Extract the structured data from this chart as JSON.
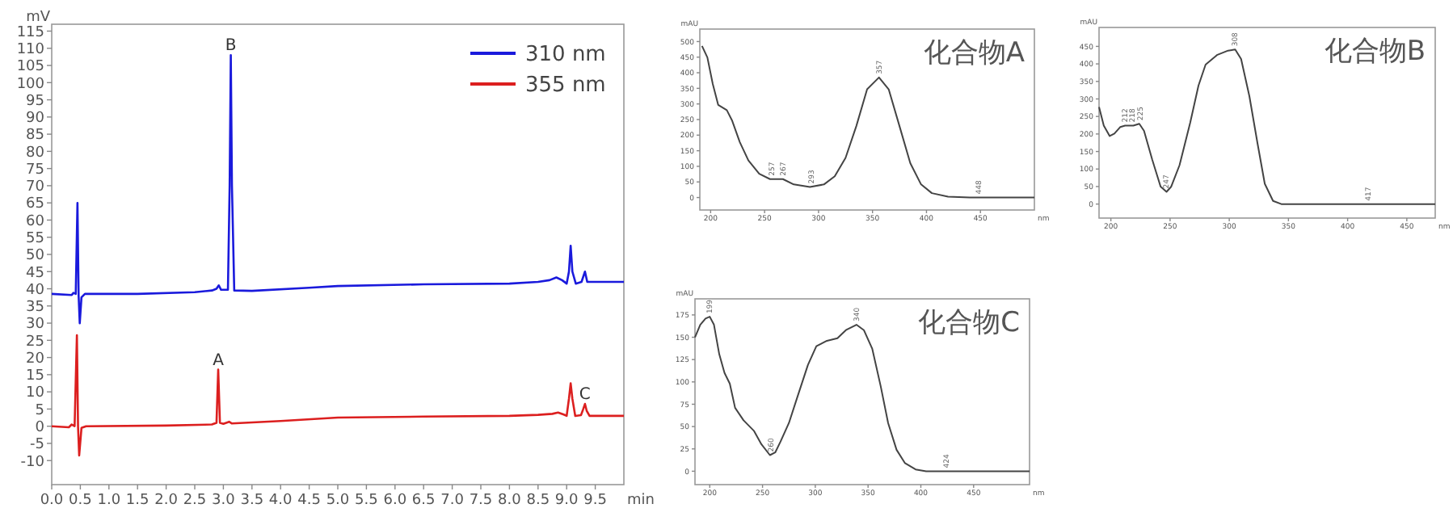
{
  "chart_data": [
    {
      "type": "line",
      "xlabel": "min",
      "ylabel": "mV",
      "xlim": [
        0,
        10
      ],
      "ylim": [
        -17,
        117
      ],
      "xticks": [
        {
          "value": 0,
          "label": "0.0"
        },
        0.5,
        {
          "value": 1,
          "label": "1.0"
        },
        1.5,
        {
          "value": 2,
          "label": "2.0"
        },
        2.5,
        {
          "value": 3,
          "label": "3.0"
        },
        3.5,
        {
          "value": 4,
          "label": "4.0"
        },
        4.5,
        {
          "value": 5,
          "label": "5.0"
        },
        5.5,
        {
          "value": 6,
          "label": "6.0"
        },
        6.5,
        {
          "value": 7,
          "label": "7.0"
        },
        7.5,
        {
          "value": 8,
          "label": "8.0"
        },
        8.5,
        {
          "value": 9,
          "label": "9.0"
        },
        9.5
      ],
      "yticks": [
        -10,
        -5,
        0,
        5,
        10,
        15,
        20,
        25,
        30,
        35,
        40,
        45,
        50,
        55,
        60,
        65,
        70,
        75,
        80,
        85,
        90,
        95,
        100,
        105,
        110,
        115
      ],
      "legend": "top right",
      "series": [
        {
          "name": "310 nm",
          "color": "#1a1adc",
          "x": [
            0,
            0.35,
            0.38,
            0.42,
            0.45,
            0.47,
            0.49,
            0.52,
            0.58,
            1.5,
            2.5,
            2.8,
            2.88,
            2.92,
            2.96,
            3.08,
            3.11,
            3.13,
            3.15,
            3.19,
            3.5,
            4.5,
            5.0,
            6.5,
            8.0,
            8.5,
            8.7,
            8.82,
            8.92,
            9.0,
            9.04,
            9.07,
            9.1,
            9.16,
            9.26,
            9.32,
            9.36,
            10
          ],
          "values": [
            38.5,
            38.2,
            38.8,
            38.5,
            65,
            38,
            30,
            37.5,
            38.5,
            38.5,
            39,
            39.5,
            40,
            41,
            39.7,
            39.7,
            70,
            108,
            70,
            39.5,
            39.4,
            40.3,
            40.8,
            41.3,
            41.5,
            42,
            42.5,
            43.3,
            42.5,
            41.5,
            45,
            52.5,
            45,
            41.5,
            42,
            45,
            42,
            42
          ]
        },
        {
          "name": "355 nm",
          "color": "#dc1f1f",
          "x": [
            0,
            0.3,
            0.35,
            0.4,
            0.44,
            0.46,
            0.48,
            0.52,
            0.6,
            2.0,
            2.8,
            2.88,
            2.91,
            2.94,
            3.0,
            3.1,
            3.15,
            4.0,
            5.0,
            6.5,
            8.0,
            8.5,
            8.75,
            8.85,
            8.95,
            9.0,
            9.04,
            9.07,
            9.1,
            9.15,
            9.25,
            9.29,
            9.32,
            9.35,
            9.4,
            10
          ],
          "values": [
            0,
            -0.3,
            0.5,
            0,
            26.5,
            0,
            -8.5,
            -0.5,
            0,
            0.2,
            0.5,
            1,
            16.5,
            1,
            0.7,
            1.3,
            0.8,
            1.5,
            2.5,
            2.8,
            3,
            3.3,
            3.6,
            4,
            3.4,
            3,
            8,
            12.5,
            8,
            3,
            3.2,
            5,
            6.5,
            4.5,
            3,
            3
          ]
        }
      ],
      "annotations": [
        {
          "text": "B",
          "x": 3.13,
          "y": 108
        },
        {
          "text": "A",
          "x": 2.91,
          "y": 16.5
        },
        {
          "text": "C",
          "x": 9.32,
          "y": 6.5
        }
      ]
    },
    {
      "type": "line",
      "title": "化合物A",
      "xlabel": "nm",
      "ylabel": "mAU",
      "xlim": [
        190,
        500
      ],
      "ylim": [
        -40,
        540
      ],
      "xticks": [
        200,
        250,
        300,
        350,
        400,
        450
      ],
      "yticks": [
        0,
        50,
        100,
        150,
        200,
        250,
        300,
        350,
        400,
        450,
        500
      ],
      "series": [
        {
          "color": "#444444",
          "x": [
            192,
            197,
            202,
            207,
            215,
            220,
            227,
            235,
            245,
            255,
            267,
            277,
            292,
            305,
            315,
            325,
            335,
            345,
            356,
            365,
            375,
            385,
            395,
            405,
            420,
            440,
            500
          ],
          "values": [
            486,
            449,
            364,
            297,
            280,
            246,
            178,
            119,
            76,
            59,
            59,
            42,
            34,
            42,
            68,
            127,
            229,
            347,
            385,
            347,
            229,
            110,
            42,
            14,
            3,
            0,
            0
          ]
        }
      ],
      "annotations": [
        {
          "text": "257",
          "x": 257,
          "y": 59
        },
        {
          "text": "267",
          "x": 267,
          "y": 59
        },
        {
          "text": "293",
          "x": 293,
          "y": 34
        },
        {
          "text": "357",
          "x": 356,
          "y": 385
        },
        {
          "text": "448",
          "x": 448,
          "y": 0
        }
      ]
    },
    {
      "type": "line",
      "title": "化合物B",
      "xlabel": "nm",
      "ylabel": "mAU",
      "xlim": [
        190,
        474
      ],
      "ylim": [
        -40,
        504
      ],
      "xticks": [
        200,
        250,
        300,
        350,
        400,
        450
      ],
      "yticks": [
        0,
        50,
        100,
        150,
        200,
        250,
        300,
        350,
        400,
        450
      ],
      "series": [
        {
          "color": "#444444",
          "x": [
            190,
            194,
            199,
            203,
            208,
            212,
            219,
            224,
            228,
            235,
            242,
            247,
            251,
            258,
            267,
            274,
            280,
            290,
            299,
            305,
            310,
            317,
            324,
            330,
            337,
            344,
            474
          ],
          "values": [
            277,
            224,
            194,
            201,
            220,
            224,
            224,
            229,
            209,
            126,
            50,
            35,
            50,
            111,
            232,
            338,
            398,
            426,
            438,
            441,
            414,
            308,
            171,
            58,
            9,
            0,
            0
          ]
        }
      ],
      "annotations": [
        {
          "text": "212",
          "x": 212,
          "y": 224
        },
        {
          "text": "218",
          "x": 218,
          "y": 224
        },
        {
          "text": "225",
          "x": 225,
          "y": 229
        },
        {
          "text": "247",
          "x": 247,
          "y": 35
        },
        {
          "text": "308",
          "x": 305,
          "y": 441
        },
        {
          "text": "417",
          "x": 417,
          "y": 0
        }
      ]
    },
    {
      "type": "line",
      "title": "化合物C",
      "xlabel": "nm",
      "ylabel": "mAU",
      "xlim": [
        186,
        503
      ],
      "ylim": [
        -15,
        193
      ],
      "xticks": [
        200,
        250,
        300,
        350,
        400,
        450
      ],
      "yticks": [
        0,
        25,
        50,
        75,
        100,
        125,
        150,
        175
      ],
      "series": [
        {
          "color": "#444444",
          "x": [
            186,
            191,
            196,
            200,
            204,
            209,
            214,
            219,
            224,
            232,
            242,
            249,
            257,
            262,
            267,
            275,
            283,
            293,
            301,
            311,
            321,
            329,
            339,
            346,
            354,
            362,
            369,
            377,
            385,
            395,
            405,
            503
          ],
          "values": [
            150,
            164,
            171,
            173,
            164,
            131,
            110,
            98,
            71,
            57,
            45,
            30,
            18,
            21,
            33,
            54,
            83,
            119,
            140,
            146,
            149,
            158,
            164,
            158,
            137,
            95,
            54,
            24,
            9,
            2,
            0,
            0
          ]
        }
      ],
      "annotations": [
        {
          "text": "199",
          "x": 200,
          "y": 173
        },
        {
          "text": "260",
          "x": 258,
          "y": 18
        },
        {
          "text": "340",
          "x": 339,
          "y": 164
        },
        {
          "text": "424",
          "x": 424,
          "y": 0
        }
      ]
    }
  ]
}
